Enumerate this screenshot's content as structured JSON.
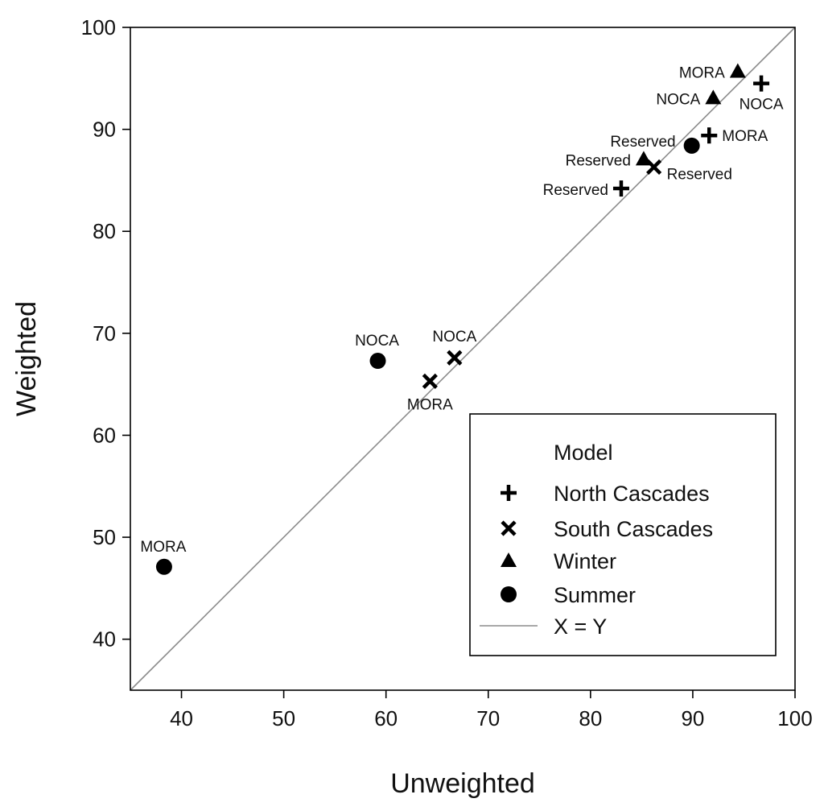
{
  "chart_data": {
    "type": "scatter",
    "xlabel": "Unweighted",
    "ylabel": "Weighted",
    "xlim": [
      35,
      100
    ],
    "ylim": [
      35,
      100
    ],
    "xticks": [
      40,
      50,
      60,
      70,
      80,
      90,
      100
    ],
    "yticks": [
      40,
      50,
      60,
      70,
      80,
      90,
      100
    ],
    "legend": {
      "title": "Model",
      "position": "bottom-right",
      "entries": [
        {
          "name": "North Cascades",
          "marker": "plus"
        },
        {
          "name": "South Cascades",
          "marker": "x"
        },
        {
          "name": "Winter",
          "marker": "triangle"
        },
        {
          "name": "Summer",
          "marker": "circle"
        },
        {
          "name": "X = Y",
          "marker": "line"
        }
      ]
    },
    "reference_line": {
      "name": "X = Y",
      "from": [
        35,
        35
      ],
      "to": [
        100,
        100
      ],
      "color": "#8c8c8c"
    },
    "series": [
      {
        "name": "North Cascades",
        "marker": "plus",
        "points": [
          {
            "label": "NOCA",
            "x": 96.7,
            "y": 94.5
          },
          {
            "label": "MORA",
            "x": 91.6,
            "y": 89.4
          },
          {
            "label": "Reserved",
            "x": 83.0,
            "y": 84.2
          }
        ]
      },
      {
        "name": "South Cascades",
        "marker": "x",
        "points": [
          {
            "label": "Reserved",
            "x": 86.2,
            "y": 86.3
          },
          {
            "label": "NOCA",
            "x": 66.7,
            "y": 67.6
          },
          {
            "label": "MORA",
            "x": 64.3,
            "y": 65.3
          }
        ]
      },
      {
        "name": "Winter",
        "marker": "triangle",
        "points": [
          {
            "label": "MORA",
            "x": 94.4,
            "y": 95.7
          },
          {
            "label": "NOCA",
            "x": 92.0,
            "y": 93.1
          },
          {
            "label": "Reserved",
            "x": 85.2,
            "y": 87.1
          }
        ]
      },
      {
        "name": "Summer",
        "marker": "circle",
        "points": [
          {
            "label": "Reserved",
            "x": 89.9,
            "y": 88.4
          },
          {
            "label": "NOCA",
            "x": 59.2,
            "y": 67.3
          },
          {
            "label": "MORA",
            "x": 38.3,
            "y": 47.1
          }
        ]
      }
    ]
  },
  "colors": {
    "marker": "#000000",
    "reference_line": "#8c8c8c",
    "axes": "#000000"
  }
}
